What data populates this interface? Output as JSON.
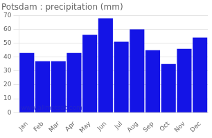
{
  "chart_data": {
    "type": "bar",
    "title": "Potsdam : precipitation (mm)",
    "categories": [
      "Jan",
      "Feb",
      "Mar",
      "Apr",
      "May",
      "Jun",
      "Jul",
      "Aug",
      "Sep",
      "Oct",
      "Nov",
      "Dec"
    ],
    "values": [
      43,
      37,
      37,
      43,
      56,
      68,
      51,
      60,
      45,
      35,
      46,
      54
    ],
    "color": "#1414e6",
    "ylim": [
      0,
      70
    ],
    "yticks": [
      0,
      10,
      20,
      30,
      40,
      50,
      60,
      70
    ],
    "grid": true,
    "annotation": "www.allmetsat.com"
  }
}
